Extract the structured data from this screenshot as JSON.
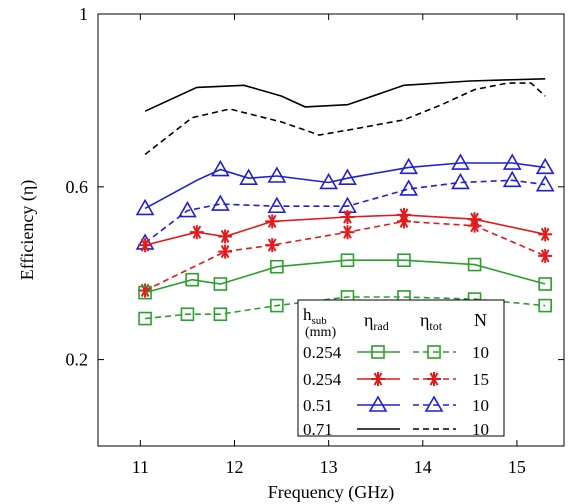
{
  "chart_data": {
    "type": "line",
    "xlabel": "Frequency (GHz)",
    "ylabel": "Efficiency (η)",
    "xlim": [
      10.55,
      15.5
    ],
    "ylim": [
      0.0,
      1.0
    ],
    "xticks": [
      11,
      12,
      13,
      14,
      15
    ],
    "xtick_labels": [
      "11",
      "12",
      "13",
      "14",
      "15"
    ],
    "yticks": [
      0.2,
      0.6,
      1.0
    ],
    "ytick_labels": [
      "0.2",
      "0.6",
      "1"
    ],
    "grid": false,
    "legend": {
      "placement": "bottom-center",
      "header": {
        "h_main": "h",
        "h_sub": "sub",
        "h_unit": "(mm)",
        "rad_main": "η",
        "rad_sub": "rad",
        "tot_main": "η",
        "tot_sub": "tot",
        "n": "N"
      },
      "rows": [
        {
          "h": "0.254",
          "n": "10",
          "color": "#2ca02c",
          "marker": "square"
        },
        {
          "h": "0.254",
          "n": "15",
          "color": "#e31a1c",
          "marker": "asterisk"
        },
        {
          "h": "0.51",
          "n": "10",
          "color": "#1f1fd6",
          "marker": "triangle"
        },
        {
          "h": "0.71",
          "n": "10",
          "color": "#000000",
          "marker": "none"
        }
      ]
    },
    "series": [
      {
        "color": "#000000",
        "dash": "solid",
        "marker": "none",
        "points": [
          [
            11.05,
            0.775
          ],
          [
            11.6,
            0.83
          ],
          [
            12.1,
            0.835
          ],
          [
            12.5,
            0.81
          ],
          [
            12.75,
            0.785
          ],
          [
            13.2,
            0.79
          ],
          [
            13.8,
            0.835
          ],
          [
            14.5,
            0.845
          ],
          [
            15.3,
            0.85
          ]
        ]
      },
      {
        "color": "#000000",
        "dash": "dashed",
        "marker": "none",
        "points": [
          [
            11.05,
            0.675
          ],
          [
            11.55,
            0.76
          ],
          [
            11.95,
            0.78
          ],
          [
            12.5,
            0.75
          ],
          [
            12.9,
            0.72
          ],
          [
            13.3,
            0.735
          ],
          [
            13.8,
            0.755
          ],
          [
            14.2,
            0.79
          ],
          [
            14.55,
            0.825
          ],
          [
            14.9,
            0.84
          ],
          [
            15.15,
            0.84
          ],
          [
            15.3,
            0.81
          ]
        ]
      },
      {
        "color": "#1f1fd6",
        "dash": "solid",
        "marker": "triangle",
        "points": [
          [
            11.05,
            0.55
          ],
          [
            11.6,
            0.615
          ],
          [
            11.85,
            0.64
          ],
          [
            12.15,
            0.62
          ],
          [
            12.45,
            0.625
          ],
          [
            13.0,
            0.61
          ],
          [
            13.2,
            0.62
          ],
          [
            13.85,
            0.645
          ],
          [
            14.4,
            0.655
          ],
          [
            14.95,
            0.655
          ],
          [
            15.3,
            0.645
          ]
        ]
      },
      {
        "color": "#1f1fd6",
        "dash": "dashed",
        "marker": "triangle",
        "points": [
          [
            11.05,
            0.47
          ],
          [
            11.5,
            0.545
          ],
          [
            11.85,
            0.56
          ],
          [
            12.45,
            0.555
          ],
          [
            13.2,
            0.555
          ],
          [
            13.85,
            0.595
          ],
          [
            14.4,
            0.61
          ],
          [
            14.95,
            0.615
          ],
          [
            15.3,
            0.605
          ]
        ]
      },
      {
        "color": "#e31a1c",
        "dash": "solid",
        "marker": "asterisk",
        "points": [
          [
            11.05,
            0.465
          ],
          [
            11.6,
            0.495
          ],
          [
            11.9,
            0.485
          ],
          [
            12.4,
            0.52
          ],
          [
            13.2,
            0.53
          ],
          [
            13.8,
            0.535
          ],
          [
            14.55,
            0.525
          ],
          [
            15.3,
            0.49
          ]
        ]
      },
      {
        "color": "#e31a1c",
        "dash": "dashed",
        "marker": "asterisk",
        "points": [
          [
            11.05,
            0.36
          ],
          [
            11.9,
            0.45
          ],
          [
            12.4,
            0.465
          ],
          [
            13.2,
            0.495
          ],
          [
            13.8,
            0.52
          ],
          [
            14.55,
            0.51
          ],
          [
            15.3,
            0.44
          ]
        ]
      },
      {
        "color": "#2ca02c",
        "dash": "solid",
        "marker": "square",
        "points": [
          [
            11.05,
            0.355
          ],
          [
            11.55,
            0.385
          ],
          [
            11.85,
            0.375
          ],
          [
            12.45,
            0.415
          ],
          [
            13.2,
            0.43
          ],
          [
            13.8,
            0.43
          ],
          [
            14.55,
            0.42
          ],
          [
            15.3,
            0.375
          ]
        ]
      },
      {
        "color": "#2ca02c",
        "dash": "dashed",
        "marker": "square",
        "points": [
          [
            11.05,
            0.295
          ],
          [
            11.5,
            0.305
          ],
          [
            11.85,
            0.305
          ],
          [
            12.45,
            0.325
          ],
          [
            13.2,
            0.345
          ],
          [
            13.8,
            0.345
          ],
          [
            14.55,
            0.34
          ],
          [
            15.3,
            0.325
          ]
        ]
      }
    ]
  }
}
